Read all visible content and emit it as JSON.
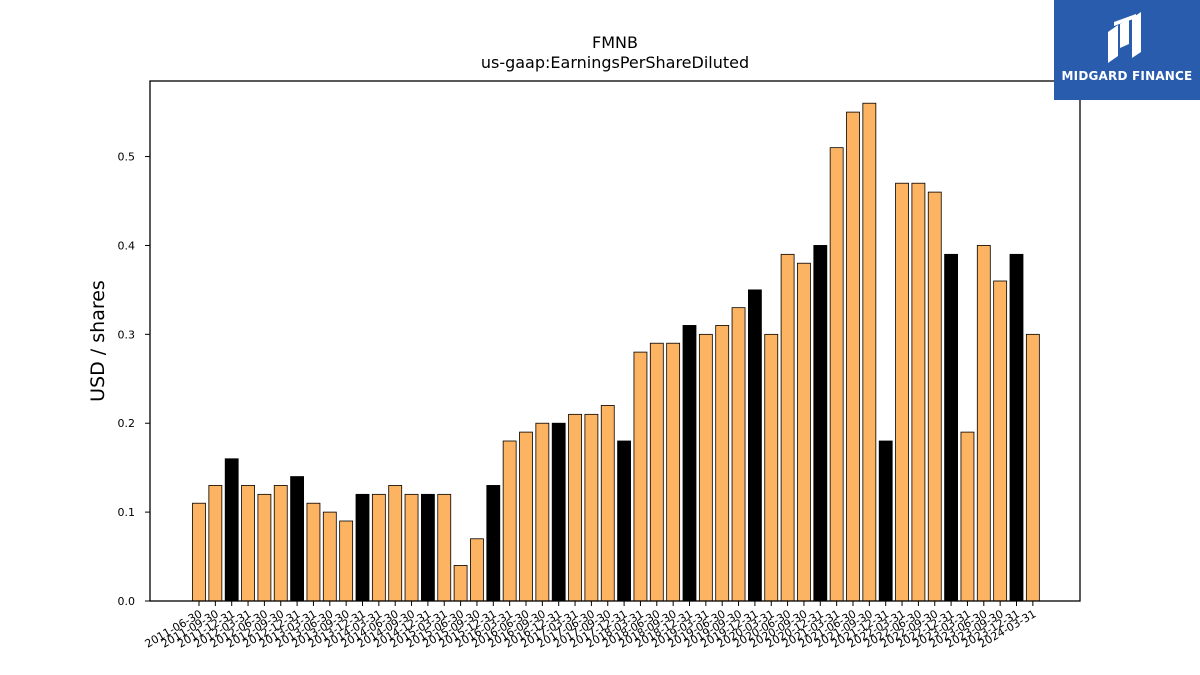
{
  "brand": {
    "name": "MIDGARD FINANCE",
    "bg_color": "#2a5cae"
  },
  "chart_data": {
    "type": "bar",
    "title": "FMNB",
    "subtitle": "us-gaap:EarningsPerShareDiluted",
    "ylabel": "USD / shares",
    "xlabel": "",
    "ylim": [
      0,
      0.585
    ],
    "yticks": [
      0.0,
      0.1,
      0.2,
      0.3,
      0.4,
      0.5
    ],
    "ytick_labels": [
      "0.0",
      "0.1",
      "0.2",
      "0.3",
      "0.4",
      "0.5"
    ],
    "grid": false,
    "colors": {
      "quarter": "#fdb462",
      "annual": "#000000",
      "edge": "#000000"
    },
    "categories": [
      "2011-06-30",
      "2011-09-30",
      "2011-12-31",
      "2012-03-31",
      "2012-06-30",
      "2012-09-30",
      "2012-12-31",
      "2013-03-31",
      "2013-06-30",
      "2013-09-30",
      "2013-12-31",
      "2014-03-31",
      "2014-06-30",
      "2014-09-30",
      "2014-12-31",
      "2015-03-31",
      "2015-06-30",
      "2015-09-30",
      "2015-12-31",
      "2016-03-31",
      "2016-06-30",
      "2016-09-30",
      "2016-12-31",
      "2017-03-31",
      "2017-06-30",
      "2017-09-30",
      "2017-12-31",
      "2018-03-31",
      "2018-06-30",
      "2018-09-30",
      "2018-12-31",
      "2019-03-31",
      "2019-06-30",
      "2019-09-30",
      "2019-12-31",
      "2020-03-31",
      "2020-06-30",
      "2020-09-30",
      "2020-12-31",
      "2021-03-31",
      "2021-06-30",
      "2021-09-30",
      "2021-12-31",
      "2022-03-31",
      "2022-06-30",
      "2022-09-30",
      "2022-12-31",
      "2023-03-31",
      "2023-06-30",
      "2023-09-30",
      "2023-12-31",
      "2024-03-31"
    ],
    "values": [
      0.11,
      0.13,
      0.16,
      0.13,
      0.12,
      0.13,
      0.14,
      0.11,
      0.1,
      0.09,
      0.12,
      0.12,
      0.13,
      0.12,
      0.12,
      0.12,
      0.04,
      0.07,
      0.13,
      0.18,
      0.19,
      0.2,
      0.2,
      0.21,
      0.21,
      0.22,
      0.18,
      0.28,
      0.29,
      0.29,
      0.31,
      0.3,
      0.31,
      0.33,
      0.35,
      0.3,
      0.39,
      0.38,
      0.4,
      0.51,
      0.55,
      0.56,
      0.18,
      0.47,
      0.47,
      0.46,
      0.39,
      0.19,
      0.4,
      0.36,
      0.39,
      0.3
    ],
    "period": [
      "Q",
      "Q",
      "FY",
      "Q",
      "Q",
      "Q",
      "FY",
      "Q",
      "Q",
      "Q",
      "FY",
      "Q",
      "Q",
      "Q",
      "FY",
      "Q",
      "Q",
      "Q",
      "FY",
      "Q",
      "Q",
      "Q",
      "FY",
      "Q",
      "Q",
      "Q",
      "FY",
      "Q",
      "Q",
      "Q",
      "FY",
      "Q",
      "Q",
      "Q",
      "FY",
      "Q",
      "Q",
      "Q",
      "FY",
      "Q",
      "Q",
      "Q",
      "FY",
      "Q",
      "Q",
      "Q",
      "FY",
      "Q",
      "Q",
      "Q",
      "FY",
      "Q"
    ]
  }
}
